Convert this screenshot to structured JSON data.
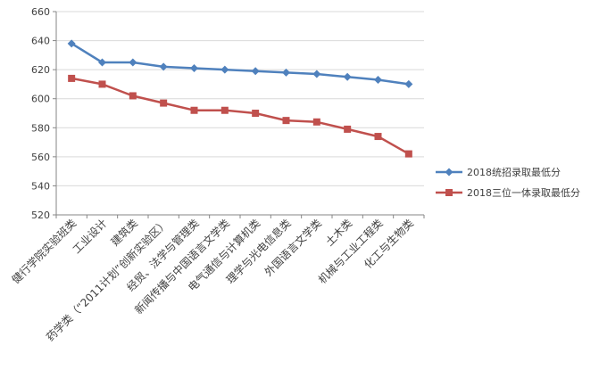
{
  "chart_data": {
    "type": "line",
    "categories": [
      "健行学院实验班类",
      "工业设计",
      "建筑类",
      "药学类（“2011计划”创新实验区）",
      "经贸、法学与管理类",
      "新闻传播与中国语言文学类",
      "电气通信与计算机类",
      "理学与光电信息类",
      "外国语言文学类",
      "土木类",
      "机械与工业工程类",
      "化工与生物类"
    ],
    "series": [
      {
        "name": "2018统招录取最低分",
        "values": [
          638,
          625,
          625,
          622,
          621,
          620,
          619,
          618,
          617,
          615,
          613,
          610
        ]
      },
      {
        "name": "2018三位一体录取最低分",
        "values": [
          614,
          610,
          602,
          597,
          592,
          592,
          590,
          585,
          584,
          579,
          574,
          562
        ]
      }
    ],
    "ylim": [
      520,
      660
    ],
    "yticks": [
      "520",
      "540",
      "560",
      "580",
      "600",
      "620",
      "640",
      "660"
    ],
    "grid": true,
    "legend_position": "right",
    "colors": {
      "series_0": "#4f81bd",
      "series_1": "#c0504d",
      "grid": "#d9d9d9",
      "axis": "#868686"
    },
    "markers": [
      "diamond",
      "square"
    ]
  }
}
